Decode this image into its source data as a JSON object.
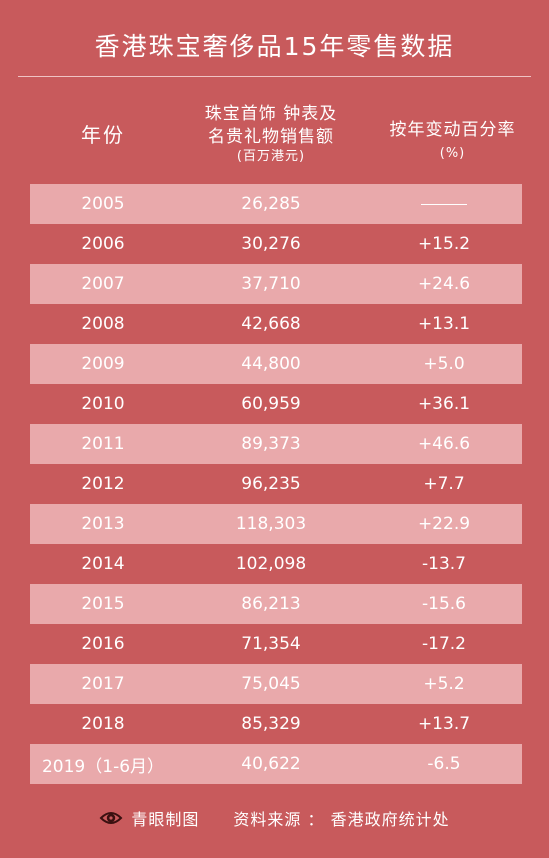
{
  "chart_data": {
    "type": "table",
    "title": "香港珠宝奢侈品15年零售数据",
    "columns": {
      "year": "年份",
      "sales": [
        "珠宝首饰 钟表及",
        "名贵礼物销售额"
      ],
      "sales_unit": "(百万港元)",
      "change": "按年变动百分率",
      "change_unit": "(%)"
    },
    "rows": [
      {
        "year": "2005",
        "value": "26,285",
        "change": ""
      },
      {
        "year": "2006",
        "value": "30,276",
        "change": "+15.2"
      },
      {
        "year": "2007",
        "value": "37,710",
        "change": "+24.6"
      },
      {
        "year": "2008",
        "value": "42,668",
        "change": "+13.1"
      },
      {
        "year": "2009",
        "value": "44,800",
        "change": "+5.0"
      },
      {
        "year": "2010",
        "value": "60,959",
        "change": "+36.1"
      },
      {
        "year": "2011",
        "value": "89,373",
        "change": "+46.6"
      },
      {
        "year": "2012",
        "value": "96,235",
        "change": "+7.7"
      },
      {
        "year": "2013",
        "value": "118,303",
        "change": "+22.9"
      },
      {
        "year": "2014",
        "value": "102,098",
        "change": "-13.7"
      },
      {
        "year": "2015",
        "value": "86,213",
        "change": "-15.6"
      },
      {
        "year": "2016",
        "value": "71,354",
        "change": "-17.2"
      },
      {
        "year": "2017",
        "value": "75,045",
        "change": "+5.2"
      },
      {
        "year": "2018",
        "value": "85,329",
        "change": "+13.7"
      },
      {
        "year": "2019（1-6月）",
        "value": "40,622",
        "change": "-6.5"
      }
    ]
  },
  "footer": {
    "brand": "青眼制图",
    "source": "资料来源 ： 香港政府统计处",
    "logo_icon": "eye-logo-icon"
  },
  "colors": {
    "background": "#c85a5c",
    "row_shade": "#e9a9ab",
    "text": "#ffffff"
  }
}
